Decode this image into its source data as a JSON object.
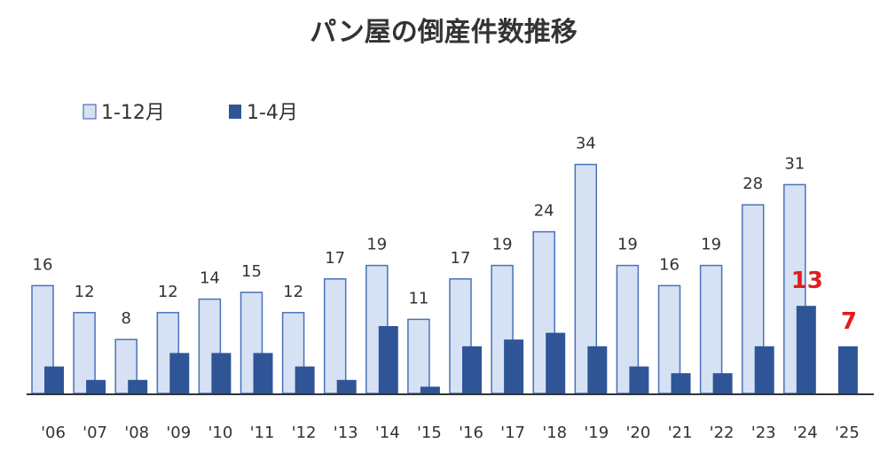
{
  "chart_data": {
    "type": "bar",
    "title": "パン屋の倒産件数推移",
    "categories": [
      "'06",
      "'07",
      "'08",
      "'09",
      "'10",
      "'11",
      "'12",
      "'13",
      "'14",
      "'15",
      "'16",
      "'17",
      "'18",
      "'19",
      "'20",
      "'21",
      "'22",
      "'23",
      "'24",
      "'25"
    ],
    "series": [
      {
        "name": "1-12月",
        "color": "#d6e2f4",
        "stroke": "#4a72b8",
        "values": [
          16,
          12,
          8,
          12,
          14,
          15,
          12,
          17,
          19,
          11,
          17,
          19,
          24,
          34,
          19,
          16,
          19,
          28,
          31,
          null
        ]
      },
      {
        "name": "1-4月",
        "color": "#2f5597",
        "values": [
          4,
          2,
          2,
          6,
          6,
          6,
          4,
          2,
          10,
          1,
          7,
          8,
          9,
          7,
          4,
          3,
          3,
          7,
          13,
          7
        ]
      }
    ],
    "data_labels_series1": [
      "16",
      "12",
      "8",
      "12",
      "14",
      "15",
      "12",
      "17",
      "19",
      "11",
      "17",
      "19",
      "24",
      "34",
      "19",
      "16",
      "19",
      "28",
      "31",
      ""
    ],
    "highlight_labels": [
      {
        "category": "'24",
        "series": "1-4月",
        "text": "13",
        "color": "#e01e1e"
      },
      {
        "category": "'25",
        "series": "1-4月",
        "text": "7",
        "color": "#e01e1e"
      }
    ],
    "ylim": [
      0,
      40
    ],
    "grid": false,
    "legend_position": "top-left"
  }
}
